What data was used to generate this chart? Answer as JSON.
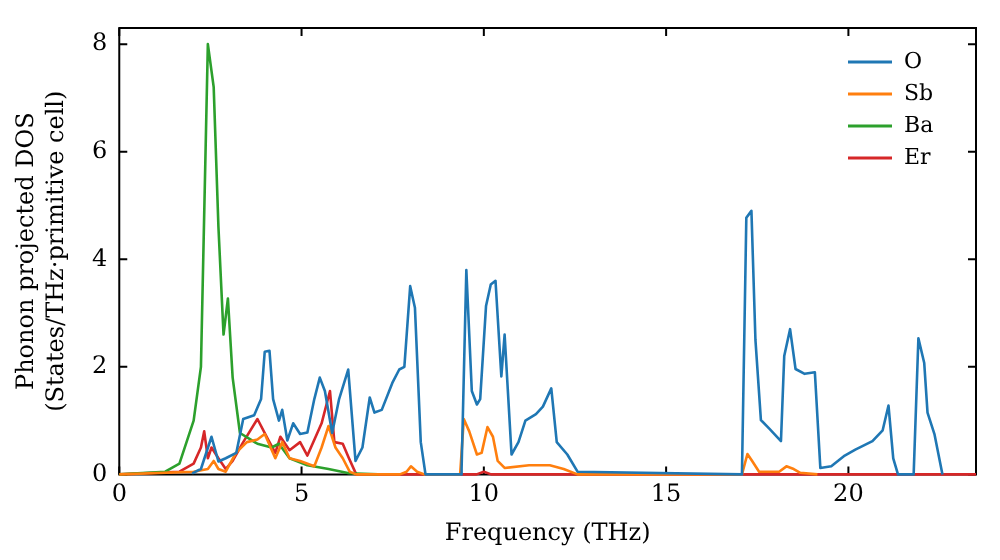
{
  "chart_data": {
    "type": "line",
    "xlabel": "Frequency (THz)",
    "ylabel": "Phonon projected DOS\n(States/THz·primitive cell)",
    "xlim": [
      0,
      23.5
    ],
    "xticks": [
      0,
      5,
      10,
      15,
      20
    ],
    "ylim": [
      0,
      8.3
    ],
    "yticks": [
      0,
      2,
      4,
      6,
      8
    ],
    "legend": "top right",
    "grid": false,
    "marker": "none",
    "line_style": "solid",
    "series": [
      {
        "name": "O",
        "color": "#1f77b4",
        "x": [
          2.0,
          2.24,
          2.53,
          2.72,
          2.92,
          3.21,
          3.4,
          3.7,
          3.89,
          3.99,
          4.12,
          4.22,
          4.38,
          4.47,
          4.61,
          4.77,
          4.96,
          5.16,
          5.35,
          5.5,
          5.64,
          5.84,
          6.03,
          6.28,
          6.48,
          6.67,
          6.87,
          7.0,
          7.2,
          7.49,
          7.68,
          7.82,
          7.98,
          8.11,
          8.27,
          8.4,
          9.35,
          9.39,
          9.52,
          9.67,
          9.81,
          9.9,
          10.06,
          10.19,
          10.32,
          10.48,
          10.57,
          10.76,
          10.95,
          11.14,
          11.43,
          11.62,
          11.85,
          12.0,
          12.29,
          12.57,
          17.08,
          17.2,
          17.34,
          17.45,
          17.6,
          17.83,
          18.15,
          18.24,
          18.4,
          18.55,
          18.8,
          19.08,
          19.23,
          19.53,
          19.9,
          20.19,
          20.66,
          20.94,
          21.1,
          21.23,
          21.36,
          21.79,
          21.92,
          22.08,
          22.17,
          22.36,
          22.58
        ],
        "values": [
          0.02,
          0.1,
          0.7,
          0.24,
          0.3,
          0.4,
          1.03,
          1.1,
          1.4,
          2.28,
          2.3,
          1.4,
          1.0,
          1.2,
          0.63,
          0.95,
          0.75,
          0.78,
          1.4,
          1.8,
          1.55,
          0.77,
          1.4,
          1.95,
          0.25,
          0.5,
          1.43,
          1.15,
          1.2,
          1.7,
          1.95,
          2.0,
          3.5,
          3.1,
          0.6,
          0,
          0,
          0.1,
          3.8,
          1.55,
          1.3,
          1.4,
          3.13,
          3.53,
          3.6,
          1.82,
          2.6,
          0.37,
          0.6,
          1.0,
          1.12,
          1.26,
          1.6,
          0.6,
          0.37,
          0.05,
          0,
          4.77,
          4.9,
          2.5,
          1.01,
          0.85,
          0.62,
          2.2,
          2.7,
          1.96,
          1.87,
          1.9,
          0.12,
          0.15,
          0.35,
          0.46,
          0.62,
          0.82,
          1.28,
          0.3,
          0,
          0,
          2.53,
          2.07,
          1.15,
          0.75,
          0
        ]
      },
      {
        "name": "Sb",
        "color": "#ff7f0e",
        "x": [
          0,
          2.04,
          2.43,
          2.59,
          2.72,
          2.92,
          3.2,
          3.5,
          3.79,
          3.99,
          4.28,
          4.47,
          4.67,
          4.96,
          5.35,
          5.55,
          5.74,
          5.93,
          6.13,
          6.32,
          6.5,
          7.7,
          7.88,
          8.0,
          8.17,
          8.37,
          9.35,
          9.45,
          9.6,
          9.81,
          9.94,
          10.1,
          10.25,
          10.38,
          10.57,
          11.24,
          11.81,
          12.19,
          12.57,
          17.08,
          17.23,
          17.36,
          17.55,
          18.1,
          18.3,
          18.5,
          18.68,
          19.15
        ],
        "values": [
          0,
          0.05,
          0.1,
          0.25,
          0.1,
          0.05,
          0.4,
          0.6,
          0.65,
          0.75,
          0.3,
          0.6,
          0.3,
          0.25,
          0.15,
          0.5,
          0.9,
          0.5,
          0.3,
          0.05,
          0,
          0,
          0.05,
          0.15,
          0.05,
          0,
          0,
          1.03,
          0.8,
          0.37,
          0.4,
          0.88,
          0.7,
          0.25,
          0.12,
          0.17,
          0.17,
          0.1,
          0,
          0,
          0.38,
          0.25,
          0.05,
          0.05,
          0.15,
          0.1,
          0.03,
          0
        ]
      },
      {
        "name": "Ba",
        "color": "#2ca02c",
        "x": [
          0,
          1.26,
          1.65,
          2.04,
          2.24,
          2.43,
          2.59,
          2.72,
          2.86,
          2.98,
          3.11,
          3.31,
          3.79,
          4.18,
          4.38,
          4.67,
          5.16,
          5.74,
          6.3,
          7.1
        ],
        "values": [
          0,
          0.05,
          0.2,
          1.0,
          2.0,
          8.0,
          7.2,
          4.6,
          2.6,
          3.27,
          1.8,
          0.77,
          0.57,
          0.5,
          0.57,
          0.3,
          0.17,
          0.1,
          0.02,
          0
        ]
      },
      {
        "name": "Er",
        "color": "#d62728",
        "x": [
          0,
          1.65,
          2.04,
          2.24,
          2.33,
          2.43,
          2.53,
          2.72,
          2.92,
          3.11,
          3.4,
          3.79,
          4.08,
          4.28,
          4.42,
          4.67,
          4.96,
          5.16,
          5.55,
          5.78,
          5.9,
          6.13,
          6.3,
          6.5,
          9.8,
          10.0,
          10.2,
          23.5
        ],
        "values": [
          0,
          0.05,
          0.2,
          0.5,
          0.8,
          0.3,
          0.5,
          0.3,
          0.1,
          0.25,
          0.6,
          1.03,
          0.65,
          0.4,
          0.7,
          0.45,
          0.6,
          0.35,
          0.95,
          1.55,
          0.6,
          0.57,
          0.3,
          0,
          0,
          0.05,
          0,
          0
        ]
      }
    ]
  }
}
